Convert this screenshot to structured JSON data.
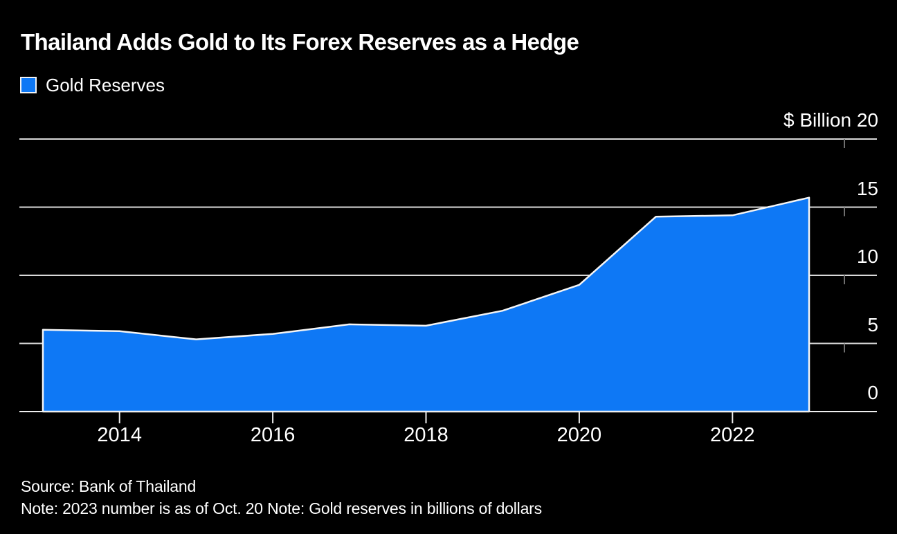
{
  "header": {
    "title": "Thailand Adds Gold to Its Forex Reserves as a Hedge"
  },
  "legend": {
    "items": [
      {
        "label": "Gold Reserves",
        "color": "#0E78F5"
      }
    ]
  },
  "footer": {
    "source": "Source: Bank of Thailand",
    "note": "Note: 2023 number is as of Oct. 20 Note: Gold reserves in billions of dollars"
  },
  "colors": {
    "background": "#000000",
    "text": "#FFFFFF",
    "gridline": "#D9D9D9",
    "axis_line": "#EFEFEF",
    "area_stroke": "#F5F5F5",
    "series_blue": "#0E78F5",
    "minor_tick": "#6F6F6F"
  },
  "chart_data": {
    "type": "area",
    "title": "Thailand Adds Gold to Its Forex Reserves as a Hedge",
    "series": [
      {
        "name": "Gold Reserves",
        "color": "#0E78F5",
        "x": [
          2013,
          2014,
          2015,
          2016,
          2017,
          2018,
          2019,
          2020,
          2021,
          2022,
          2023
        ],
        "values": [
          6.0,
          5.9,
          5.3,
          5.7,
          6.4,
          6.3,
          7.4,
          9.3,
          14.3,
          14.4,
          15.7
        ]
      }
    ],
    "xlabel": "",
    "ylabel": "$ Billion",
    "x_ticks": [
      "2014",
      "2016",
      "2018",
      "2020",
      "2022"
    ],
    "y_ticks": [
      0,
      5,
      10,
      15,
      20
    ],
    "xlim": [
      2013,
      2023
    ],
    "ylim": [
      0,
      20
    ],
    "grid": "horizontal",
    "legend_position": "top-left",
    "y_tick_label_side": "right",
    "background": "#000000"
  }
}
